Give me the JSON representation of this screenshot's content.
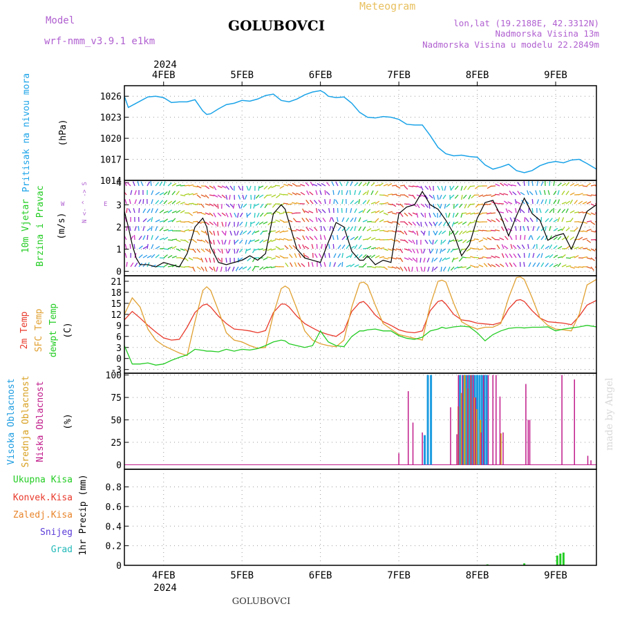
{
  "header": {
    "model_label": "Model",
    "model_name": "wrf-nmm_v3.9.1 e1km",
    "station": "GOLUBOVCI",
    "product": "Meteogram",
    "coords": "lon,lat (19.2188E, 42.3312N)",
    "elevation": "Nadmorska Visina 13m",
    "model_elevation": "Nadmorska Visina u modelu 22.2849m",
    "footer_station": "GOLUBOVCI",
    "credit": "made by Angel"
  },
  "time_axis": {
    "year": "2024",
    "ticks": [
      "4FEB",
      "5FEB",
      "6FEB",
      "7FEB",
      "8FEB",
      "9FEB"
    ],
    "start_day": 3.5,
    "end_day": 9.52
  },
  "colors": {
    "pressure": "#1aa3e8",
    "temp2m": "#e8382a",
    "sfc": "#e0a030",
    "dewpt": "#22cc22",
    "high": "#1a9be0",
    "mid": "#d8a020",
    "low": "#c01a8a",
    "purple": "#b060d0",
    "gold": "#e8c060"
  },
  "chart_data": [
    {
      "type": "line",
      "panel": "pressure",
      "ylabel": "Pritisak na nivou mora",
      "unit": "(hPa)",
      "ylim": [
        1014,
        1027.5
      ],
      "yticks": [
        1014,
        1017,
        1020,
        1023,
        1026
      ],
      "x": [
        3.5,
        3.55,
        3.6,
        3.7,
        3.8,
        3.9,
        4.0,
        4.1,
        4.2,
        4.3,
        4.4,
        4.5,
        4.55,
        4.6,
        4.7,
        4.8,
        4.9,
        5.0,
        5.1,
        5.2,
        5.3,
        5.4,
        5.5,
        5.6,
        5.7,
        5.8,
        5.9,
        6.0,
        6.05,
        6.1,
        6.2,
        6.3,
        6.4,
        6.5,
        6.6,
        6.7,
        6.8,
        6.9,
        7.0,
        7.1,
        7.2,
        7.3,
        7.4,
        7.5,
        7.6,
        7.7,
        7.8,
        7.9,
        8.0,
        8.1,
        8.2,
        8.3,
        8.4,
        8.5,
        8.6,
        8.7,
        8.8,
        8.9,
        9.0,
        9.1,
        9.2,
        9.3,
        9.4,
        9.52
      ],
      "values": [
        1026.0,
        1024.4,
        1024.7,
        1025.3,
        1025.9,
        1026.0,
        1025.8,
        1025.1,
        1025.2,
        1025.2,
        1025.5,
        1023.9,
        1023.4,
        1023.5,
        1024.2,
        1024.8,
        1025.0,
        1025.4,
        1025.3,
        1025.6,
        1026.1,
        1026.3,
        1025.4,
        1025.2,
        1025.6,
        1026.2,
        1026.6,
        1026.8,
        1026.5,
        1026.0,
        1025.8,
        1025.9,
        1025.0,
        1023.7,
        1023.0,
        1022.9,
        1023.1,
        1023.0,
        1022.7,
        1022.0,
        1021.9,
        1021.9,
        1020.4,
        1018.7,
        1017.8,
        1017.5,
        1017.6,
        1017.4,
        1017.3,
        1016.2,
        1015.6,
        1015.9,
        1016.3,
        1015.4,
        1015.1,
        1015.4,
        1016.1,
        1016.5,
        1016.7,
        1016.5,
        1016.9,
        1017.0,
        1016.4,
        1015.6
      ]
    },
    {
      "type": "line",
      "panel": "wind",
      "ylabel": "10m Vjetar",
      "ylabel2": "Brzina i Pravac",
      "unit": "(m/s)",
      "compass": "N <- ^ -> S",
      "compass_w": "W",
      "compass_e": "E",
      "ylim": [
        -0.2,
        4.1
      ],
      "yticks": [
        0,
        1,
        2,
        3,
        4
      ],
      "x": [
        3.5,
        3.55,
        3.6,
        3.65,
        3.7,
        3.8,
        3.9,
        4.0,
        4.1,
        4.2,
        4.3,
        4.4,
        4.5,
        4.55,
        4.6,
        4.7,
        4.8,
        4.9,
        5.0,
        5.1,
        5.2,
        5.3,
        5.4,
        5.5,
        5.55,
        5.6,
        5.7,
        5.8,
        5.9,
        6.0,
        6.1,
        6.2,
        6.3,
        6.4,
        6.5,
        6.55,
        6.6,
        6.7,
        6.8,
        6.9,
        7.0,
        7.1,
        7.2,
        7.3,
        7.4,
        7.5,
        7.6,
        7.7,
        7.8,
        7.9,
        8.0,
        8.1,
        8.2,
        8.3,
        8.4,
        8.5,
        8.6,
        8.7,
        8.8,
        8.9,
        9.0,
        9.1,
        9.2,
        9.3,
        9.4,
        9.52
      ],
      "values": [
        2.7,
        2.0,
        1.2,
        0.6,
        0.3,
        0.3,
        0.2,
        0.4,
        0.3,
        0.2,
        0.8,
        2.0,
        2.4,
        2.0,
        1.1,
        0.4,
        0.3,
        0.4,
        0.5,
        0.7,
        0.5,
        0.8,
        2.6,
        3.0,
        2.8,
        2.2,
        1.0,
        0.6,
        0.5,
        0.4,
        1.3,
        2.2,
        2.0,
        0.9,
        0.5,
        0.5,
        0.7,
        0.3,
        0.5,
        0.4,
        2.6,
        2.9,
        3.0,
        3.6,
        3.0,
        2.8,
        2.3,
        1.7,
        0.7,
        1.2,
        2.4,
        3.1,
        3.2,
        2.5,
        1.6,
        2.5,
        3.3,
        2.6,
        2.3,
        1.4,
        1.6,
        1.7,
        1.0,
        1.8,
        2.7,
        3.0
      ]
    },
    {
      "type": "line",
      "panel": "temperature",
      "ylabel_2m": "2m Temp",
      "ylabel_sfc": "SFC Temp",
      "ylabel_dew": "dewpt Temp",
      "unit": "(C)",
      "ylim": [
        -4,
        22.5
      ],
      "yticks": [
        -3,
        0,
        3,
        6,
        9,
        12,
        15,
        18,
        21
      ],
      "x": [
        3.5,
        3.6,
        3.7,
        3.8,
        3.9,
        4.0,
        4.1,
        4.2,
        4.3,
        4.4,
        4.5,
        4.55,
        4.6,
        4.7,
        4.8,
        4.9,
        5.0,
        5.1,
        5.2,
        5.3,
        5.4,
        5.5,
        5.55,
        5.6,
        5.7,
        5.8,
        5.9,
        6.0,
        6.1,
        6.2,
        6.3,
        6.4,
        6.5,
        6.55,
        6.6,
        6.7,
        6.8,
        6.9,
        7.0,
        7.1,
        7.2,
        7.3,
        7.4,
        7.5,
        7.55,
        7.6,
        7.7,
        7.8,
        7.9,
        8.0,
        8.1,
        8.2,
        8.3,
        8.4,
        8.5,
        8.55,
        8.6,
        8.7,
        8.8,
        8.9,
        9.0,
        9.1,
        9.2,
        9.3,
        9.4,
        9.52
      ],
      "series": [
        {
          "name": "2m Temp",
          "key": "temp2m",
          "values": [
            10.5,
            12.8,
            11.0,
            9.0,
            7.2,
            5.6,
            5.0,
            5.2,
            8.5,
            12.5,
            14.5,
            14.8,
            14.0,
            11.5,
            9.5,
            8.0,
            7.8,
            7.5,
            7.0,
            7.6,
            12.5,
            14.8,
            14.8,
            14.0,
            11.5,
            9.5,
            8.3,
            7.2,
            6.5,
            6.0,
            7.5,
            12.8,
            15.2,
            15.5,
            14.5,
            11.8,
            10.0,
            9.0,
            7.8,
            7.2,
            7.0,
            7.5,
            13.0,
            15.5,
            15.8,
            14.8,
            12.0,
            10.5,
            10.2,
            9.6,
            9.4,
            9.2,
            9.8,
            13.5,
            15.8,
            16.0,
            15.5,
            13.0,
            11.0,
            10.0,
            9.8,
            9.6,
            9.2,
            11.5,
            14.5,
            15.8
          ]
        },
        {
          "name": "SFC Temp",
          "key": "sfc",
          "values": [
            12.0,
            16.5,
            14.0,
            8.0,
            5.0,
            3.5,
            2.5,
            1.5,
            0.8,
            10.0,
            18.5,
            19.5,
            18.5,
            13.0,
            7.0,
            5.0,
            4.5,
            3.5,
            2.8,
            3.0,
            12.0,
            19.0,
            19.7,
            19.0,
            13.5,
            7.5,
            5.0,
            4.0,
            3.5,
            3.2,
            5.0,
            14.0,
            20.5,
            20.8,
            20.0,
            14.5,
            9.5,
            8.0,
            6.5,
            6.0,
            5.5,
            5.0,
            14.5,
            21.0,
            21.3,
            20.8,
            15.0,
            10.0,
            8.8,
            8.0,
            8.5,
            8.5,
            9.5,
            16.5,
            22.0,
            22.2,
            21.5,
            16.5,
            11.0,
            9.0,
            8.0,
            7.8,
            7.5,
            12.0,
            20.0,
            21.5
          ]
        },
        {
          "name": "dewpt Temp",
          "key": "dewpt",
          "values": [
            3.5,
            -1.5,
            -1.5,
            -1.2,
            -1.8,
            -1.5,
            -0.5,
            0.3,
            1.0,
            2.5,
            2.2,
            2.0,
            2.0,
            1.8,
            2.5,
            2.0,
            2.5,
            2.3,
            2.7,
            3.5,
            4.5,
            5.0,
            4.8,
            4.0,
            3.5,
            3.0,
            3.5,
            7.5,
            4.5,
            3.5,
            3.2,
            6.0,
            7.5,
            7.5,
            7.8,
            8.0,
            7.5,
            7.5,
            6.2,
            5.5,
            5.2,
            5.8,
            7.5,
            8.0,
            8.5,
            8.2,
            8.6,
            8.8,
            8.6,
            7.0,
            4.8,
            6.5,
            7.5,
            8.2,
            8.4,
            8.4,
            8.3,
            8.5,
            8.5,
            8.6,
            7.5,
            8.0,
            8.3,
            8.6,
            9.0,
            8.6
          ]
        }
      ]
    },
    {
      "type": "bar",
      "panel": "cloud",
      "ylabel_high": "Visoka Oblacnost",
      "ylabel_mid": "Srednja Oblacnost",
      "ylabel_low": "Niska Oblacnost",
      "unit": "(%)",
      "ylim": [
        -5,
        102
      ],
      "yticks": [
        0,
        25,
        50,
        75,
        100
      ],
      "series": [
        {
          "name": "Visoka Oblacnost",
          "key": "high",
          "x": [
            7.33,
            7.37,
            7.41,
            7.78,
            7.82,
            7.86,
            7.9,
            7.93,
            7.97,
            8.0,
            8.03,
            8.06,
            8.09,
            8.12
          ],
          "values": [
            33,
            100,
            100,
            100,
            100,
            100,
            100,
            100,
            100,
            100,
            100,
            100,
            100,
            100
          ]
        },
        {
          "name": "Srednja Oblacnost",
          "key": "mid",
          "x": [
            7.76,
            7.8,
            7.84,
            7.88,
            7.92,
            7.96,
            7.99,
            8.04,
            8.3
          ],
          "values": [
            65,
            80,
            100,
            85,
            100,
            75,
            62,
            50,
            35
          ]
        },
        {
          "name": "Niska Oblacnost",
          "key": "low",
          "x": [
            7.0,
            7.12,
            7.18,
            7.3,
            7.66,
            7.74,
            7.76,
            7.81,
            7.88,
            7.92,
            7.95,
            7.98,
            8.05,
            8.08,
            8.14,
            8.2,
            8.24,
            8.29,
            8.33,
            8.62,
            8.65,
            8.67,
            9.08,
            9.24,
            9.41,
            9.45
          ],
          "values": [
            13,
            82,
            47,
            36,
            64,
            34,
            100,
            100,
            100,
            100,
            100,
            75,
            36,
            100,
            100,
            100,
            100,
            76,
            36,
            90,
            50,
            50,
            100,
            95,
            10,
            5
          ]
        }
      ]
    },
    {
      "type": "bar",
      "panel": "precip",
      "unit": "1hr Precip (mm)",
      "labels": [
        "Ukupna Kisa",
        "Konvek.Kisa",
        "Zaledj.Kisa",
        "Snijeg",
        "Grad"
      ],
      "ylim": [
        0,
        0.98
      ],
      "yticks": [
        0,
        0.2,
        0.4,
        0.6,
        0.8
      ],
      "x": [
        8.13,
        8.6,
        9.02,
        9.06,
        9.1
      ],
      "values": [
        0.01,
        0.02,
        0.1,
        0.12,
        0.13
      ]
    }
  ]
}
